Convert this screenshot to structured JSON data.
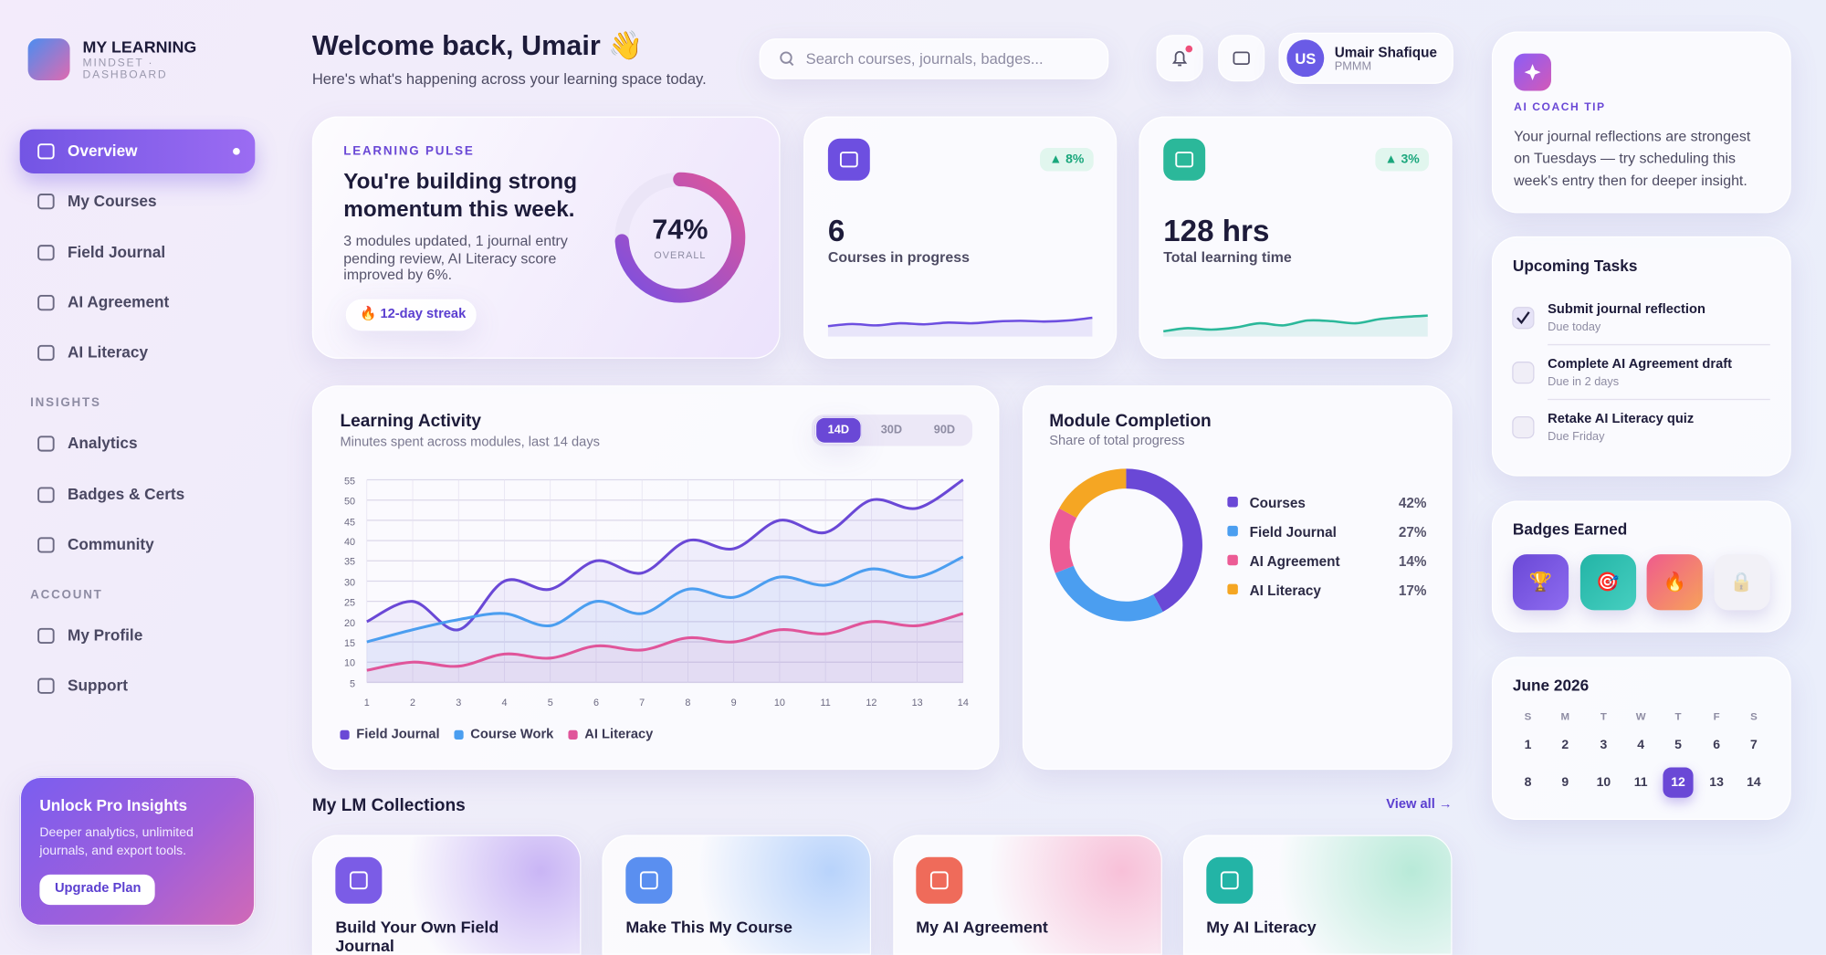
{
  "brand": {
    "title": "MY LEARNING",
    "subtitle": "MINDSET · DASHBOARD"
  },
  "nav": {
    "main": [
      {
        "label": "Overview",
        "active": true
      },
      {
        "label": "My Courses",
        "active": false
      },
      {
        "label": "Field Journal",
        "active": false
      },
      {
        "label": "AI Agreement",
        "active": false
      },
      {
        "label": "AI Literacy",
        "active": false
      }
    ],
    "sections": [
      {
        "title": "INSIGHTS",
        "items": [
          "Analytics",
          "Badges & Certs",
          "Community"
        ]
      },
      {
        "title": "ACCOUNT",
        "items": [
          "My Profile",
          "Support"
        ]
      }
    ]
  },
  "promo": {
    "title": "Unlock Pro Insights",
    "text": "Deeper analytics, unlimited journals, and export tools.",
    "button": "Upgrade Plan"
  },
  "header": {
    "title": "Welcome back, Umair 👋",
    "subtitle": "Here's what's happening across your learning space today.",
    "search_placeholder": "Search courses, journals, badges...",
    "user": {
      "initials": "US",
      "name": "Umair Shafique",
      "role": "PMMM"
    }
  },
  "pulse": {
    "eyebrow": "LEARNING PULSE",
    "title": "You're building strong momentum this week.",
    "text": "3 modules updated, 1 journal entry pending review, AI Literacy score improved by 6%.",
    "streak": "🔥 12-day streak",
    "progress": {
      "value": 74,
      "label": "74%",
      "caption": "OVERALL",
      "ylim": [
        0,
        100
      ]
    }
  },
  "stats": [
    {
      "value": "6",
      "label": "Courses in progress",
      "change": "▲ 8%",
      "color": "#6d4fe0",
      "spark": {
        "values": [
          3,
          3.6,
          3.2,
          3.8,
          3.5,
          4,
          3.8,
          4.3,
          4.5,
          4.3,
          4.6,
          5.4
        ],
        "ylim": [
          0,
          10
        ]
      }
    },
    {
      "value": "128 hrs",
      "label": "Total learning time",
      "change": "▲ 3%",
      "color": "#2bb89a",
      "spark": {
        "values": [
          1.5,
          2.4,
          2,
          2.6,
          3.8,
          3.2,
          4.6,
          4.4,
          3.8,
          5,
          5.6,
          6
        ],
        "ylim": [
          0,
          10
        ]
      }
    }
  ],
  "activity": {
    "type": "line",
    "title": "Learning Activity",
    "subtitle": "Minutes spent across modules, last 14 days",
    "ranges": [
      "14D",
      "30D",
      "90D"
    ],
    "active_range": 0,
    "x": [
      1,
      2,
      3,
      4,
      5,
      6,
      7,
      8,
      9,
      10,
      11,
      12,
      13,
      14
    ],
    "xlim": [
      1,
      14
    ],
    "ylim": [
      5,
      55
    ],
    "yticks": [
      5,
      10,
      15,
      20,
      25,
      30,
      35,
      40,
      45,
      50,
      55
    ],
    "grid": true,
    "series": [
      {
        "name": "Field Journal",
        "color": "#6a48d6",
        "values": [
          20,
          25,
          18,
          30,
          28,
          35,
          32,
          40,
          38,
          45,
          42,
          50,
          48,
          55
        ]
      },
      {
        "name": "Course Work",
        "color": "#4b9ef0",
        "values": [
          15,
          18,
          20.5,
          22,
          19,
          25,
          22,
          28,
          26,
          31,
          29,
          33,
          31,
          36
        ]
      },
      {
        "name": "AI Literacy",
        "color": "#e0559a",
        "values": [
          8,
          10,
          9,
          12,
          11,
          14,
          13,
          16,
          15,
          18,
          17,
          20,
          19,
          22
        ]
      }
    ]
  },
  "completion": {
    "type": "pie",
    "title": "Module Completion",
    "subtitle": "Share of total progress",
    "categories": [
      "Courses",
      "Field Journal",
      "AI Agreement",
      "AI Literacy"
    ],
    "values": [
      42,
      27,
      14,
      17
    ],
    "value_labels": [
      "42%",
      "27%",
      "14%",
      "17%"
    ],
    "colors": [
      "#6a48d6",
      "#4b9ef0",
      "#ec5b95",
      "#f5a623"
    ]
  },
  "coach": {
    "eyebrow": "AI COACH TIP",
    "text": "Your journal reflections are strongest on Tuesdays — try scheduling this week's entry then for deeper insight."
  },
  "tasks": {
    "title": "Upcoming Tasks",
    "items": [
      {
        "title": "Submit journal reflection",
        "due": "Due today",
        "done": true
      },
      {
        "title": "Complete AI Agreement draft",
        "due": "Due in 2 days",
        "done": false
      },
      {
        "title": "Retake AI Literacy quiz",
        "due": "Due Friday",
        "done": false
      }
    ]
  },
  "badges": {
    "title": "Badges Earned",
    "items": [
      "🏆",
      "🎯",
      "🔥",
      "🔒"
    ]
  },
  "calendar": {
    "title": "June 2026",
    "weekdays": [
      "S",
      "M",
      "T",
      "W",
      "T",
      "F",
      "S"
    ],
    "days": [
      1,
      2,
      3,
      4,
      5,
      6,
      7,
      8,
      9,
      10,
      11,
      12,
      13,
      14
    ],
    "selected": 12
  },
  "collections": {
    "title": "My LM Collections",
    "link": "View all →",
    "cards": [
      "Build Your Own Field Journal",
      "Make This My Course",
      "My AI Agreement",
      "My AI Literacy"
    ]
  }
}
